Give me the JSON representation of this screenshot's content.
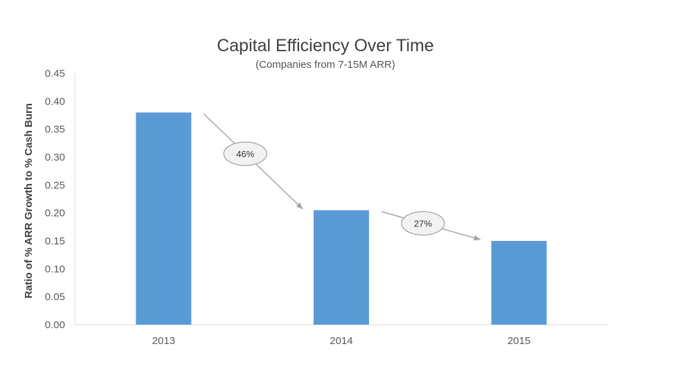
{
  "chart_data": {
    "type": "bar",
    "title": "Capital Efficiency Over Time",
    "subtitle": "(Companies from 7-15M ARR)",
    "xlabel": "",
    "ylabel": "Ratio of % ARR Growth to % Cash Burn",
    "categories": [
      "2013",
      "2014",
      "2015"
    ],
    "values": [
      0.38,
      0.205,
      0.15
    ],
    "ylim": [
      0,
      0.45
    ],
    "yticks": [
      "0.00",
      "0.05",
      "0.10",
      "0.15",
      "0.20",
      "0.25",
      "0.30",
      "0.35",
      "0.40",
      "0.45"
    ],
    "grid": false,
    "legend": "none",
    "bar_color": "#5B9BD5",
    "annotations": [
      {
        "label": "46%",
        "from": "2013",
        "to": "2014"
      },
      {
        "label": "27%",
        "from": "2014",
        "to": "2015"
      }
    ]
  }
}
